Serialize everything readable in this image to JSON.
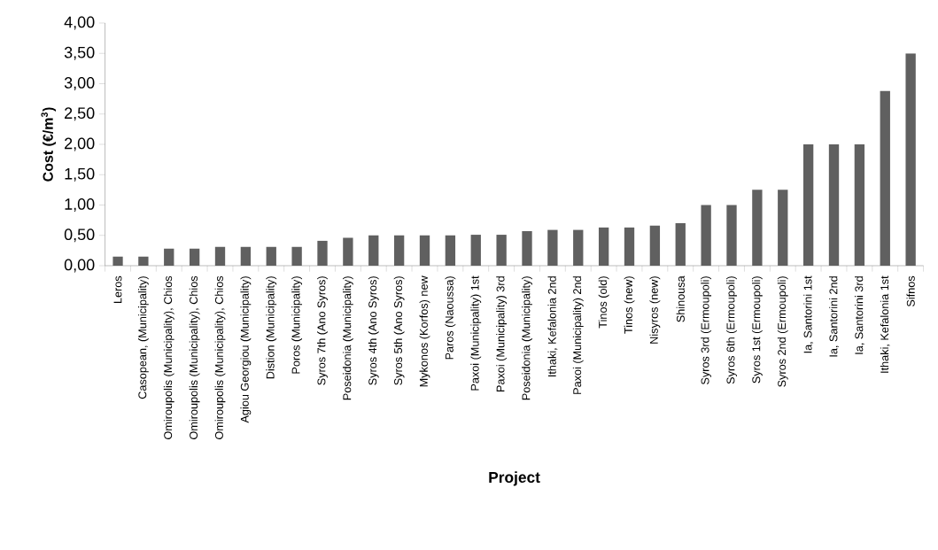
{
  "chart_data": {
    "type": "bar",
    "xlabel": "Project",
    "ylabel": "Cost (€/m$^{3}$)",
    "categories": [
      "Leros",
      "Casopean, (Municipality)",
      "Omiroupolis (Municipality), Chios",
      "Omiroupolis (Municipality), Chios",
      "Omiroupolis (Municipality), Chios",
      "Agiou Georgiou (Municipality)",
      "Distion (Municipality)",
      "Poros (Municipality)",
      "Syros 7th (Ano Syros)",
      "Poseidonia (Municipality)",
      "Syros 4th (Ano Syros)",
      "Syros 5th (Ano Syros)",
      "Mykonos (Korfos) new",
      "Paros (Naoussa)",
      "Paxoi (Municipality) 1st",
      "Paxoi (Municipality) 3rd",
      "Poseidonia (Municipality)",
      "Ithaki, Kefalonia 2nd",
      "Paxoi (Municipality) 2nd",
      "Tinos (old)",
      "Tinos (new)",
      "Nisyros (new)",
      "Shinousa",
      "Syros 3rd (Ermoupoli)",
      "Syros 6th (Ermoupoli)",
      "Syros 1st (Ermoupoli)",
      "Syros 2nd (Ermoupoli)",
      "Ia, Santorini 1st",
      "Ia, Santorini 2nd",
      "Ia, Santorini 3rd",
      "Ithaki, Kefalonia 1st",
      "Sifnos"
    ],
    "values": [
      0.15,
      0.15,
      0.28,
      0.28,
      0.31,
      0.31,
      0.31,
      0.31,
      0.41,
      0.46,
      0.5,
      0.5,
      0.5,
      0.5,
      0.51,
      0.51,
      0.57,
      0.59,
      0.59,
      0.63,
      0.63,
      0.66,
      0.7,
      1.0,
      1.0,
      1.25,
      1.25,
      2.0,
      2.0,
      2.0,
      2.88,
      3.5
    ],
    "color": "#606060",
    "ylim": [
      0,
      4
    ],
    "yticks": [
      {
        "value": 0,
        "label": "0,00"
      },
      {
        "value": 0.5,
        "label": "0,50"
      },
      {
        "value": 1,
        "label": "1,00"
      },
      {
        "value": 1.5,
        "label": "1,50"
      },
      {
        "value": 2,
        "label": "2,00"
      },
      {
        "value": 2.5,
        "label": "2,50"
      },
      {
        "value": 3,
        "label": "3,00"
      },
      {
        "value": 3.5,
        "label": "3,50"
      },
      {
        "value": 4,
        "label": "4,00"
      }
    ],
    "grid": false
  }
}
